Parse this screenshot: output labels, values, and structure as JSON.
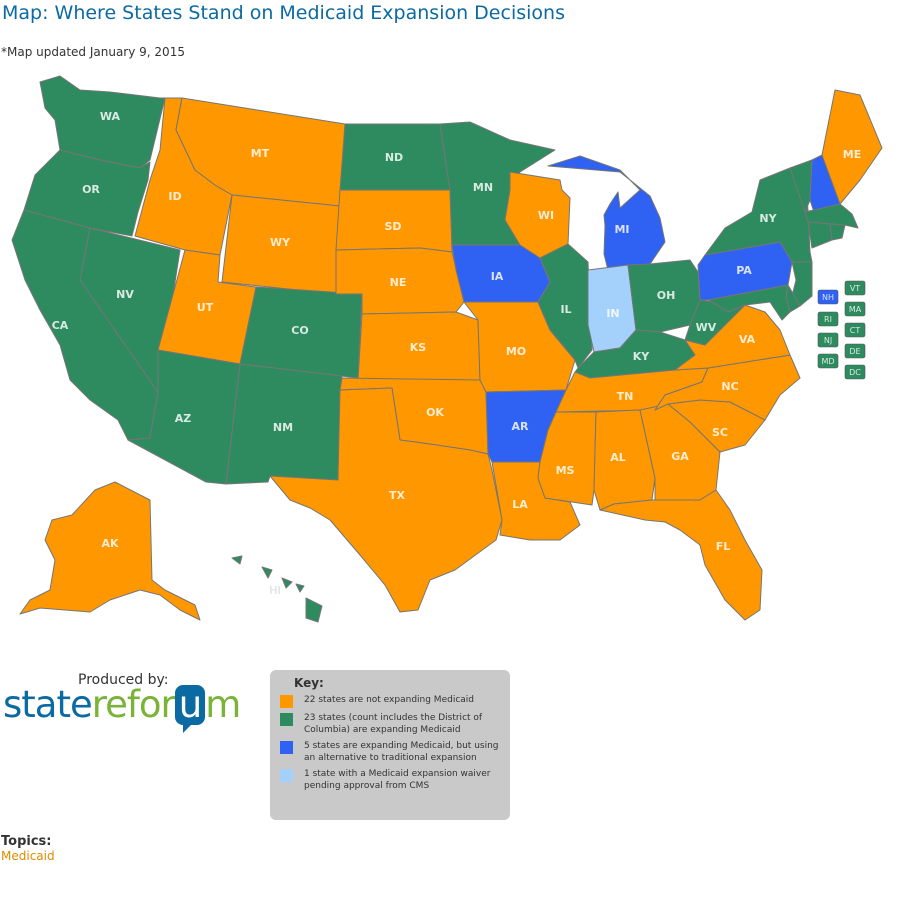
{
  "title": "Map: Where States Stand on Medicaid Expansion Decisions",
  "subtitle": "*Map updated January 9, 2015",
  "colors": {
    "not_expanding": "#ff9800",
    "expanding": "#2e8b60",
    "alternative": "#2f62f2",
    "pending": "#a4d1fb",
    "border": "#757575"
  },
  "states": [
    {
      "abbr": "WA",
      "status": "expanding"
    },
    {
      "abbr": "OR",
      "status": "expanding"
    },
    {
      "abbr": "CA",
      "status": "expanding"
    },
    {
      "abbr": "NV",
      "status": "expanding"
    },
    {
      "abbr": "ID",
      "status": "not_expanding"
    },
    {
      "abbr": "MT",
      "status": "not_expanding"
    },
    {
      "abbr": "WY",
      "status": "not_expanding"
    },
    {
      "abbr": "UT",
      "status": "not_expanding"
    },
    {
      "abbr": "CO",
      "status": "expanding"
    },
    {
      "abbr": "AZ",
      "status": "expanding"
    },
    {
      "abbr": "NM",
      "status": "expanding"
    },
    {
      "abbr": "ND",
      "status": "expanding"
    },
    {
      "abbr": "SD",
      "status": "not_expanding"
    },
    {
      "abbr": "NE",
      "status": "not_expanding"
    },
    {
      "abbr": "KS",
      "status": "not_expanding"
    },
    {
      "abbr": "OK",
      "status": "not_expanding"
    },
    {
      "abbr": "TX",
      "status": "not_expanding"
    },
    {
      "abbr": "MN",
      "status": "expanding"
    },
    {
      "abbr": "IA",
      "status": "alternative"
    },
    {
      "abbr": "MO",
      "status": "not_expanding"
    },
    {
      "abbr": "AR",
      "status": "alternative"
    },
    {
      "abbr": "LA",
      "status": "not_expanding"
    },
    {
      "abbr": "WI",
      "status": "not_expanding"
    },
    {
      "abbr": "IL",
      "status": "expanding"
    },
    {
      "abbr": "MI",
      "status": "alternative"
    },
    {
      "abbr": "IN",
      "status": "pending"
    },
    {
      "abbr": "OH",
      "status": "expanding"
    },
    {
      "abbr": "KY",
      "status": "expanding"
    },
    {
      "abbr": "TN",
      "status": "not_expanding"
    },
    {
      "abbr": "MS",
      "status": "not_expanding"
    },
    {
      "abbr": "AL",
      "status": "not_expanding"
    },
    {
      "abbr": "GA",
      "status": "not_expanding"
    },
    {
      "abbr": "FL",
      "status": "not_expanding"
    },
    {
      "abbr": "SC",
      "status": "not_expanding"
    },
    {
      "abbr": "NC",
      "status": "not_expanding"
    },
    {
      "abbr": "VA",
      "status": "not_expanding"
    },
    {
      "abbr": "WV",
      "status": "expanding"
    },
    {
      "abbr": "PA",
      "status": "alternative"
    },
    {
      "abbr": "NY",
      "status": "expanding"
    },
    {
      "abbr": "ME",
      "status": "not_expanding"
    },
    {
      "abbr": "AK",
      "status": "not_expanding"
    },
    {
      "abbr": "HI",
      "status": "expanding"
    }
  ],
  "small_states": [
    {
      "abbr": "NH",
      "status": "alternative"
    },
    {
      "abbr": "VT",
      "status": "expanding"
    },
    {
      "abbr": "MA",
      "status": "expanding"
    },
    {
      "abbr": "RI",
      "status": "expanding"
    },
    {
      "abbr": "CT",
      "status": "expanding"
    },
    {
      "abbr": "NJ",
      "status": "expanding"
    },
    {
      "abbr": "DE",
      "status": "expanding"
    },
    {
      "abbr": "MD",
      "status": "expanding"
    },
    {
      "abbr": "DC",
      "status": "expanding"
    }
  ],
  "produced_by": "Produced by:",
  "logo": {
    "part1": "state",
    "part2": "refor",
    "part3": "u",
    "part4": "m"
  },
  "key": {
    "title": "Key:",
    "items": [
      {
        "color": "#ff9800",
        "text": "22 states are not expanding Medicaid"
      },
      {
        "color": "#2e8b60",
        "text": "23 states (count includes the District of Columbia) are expanding Medicaid"
      },
      {
        "color": "#2f62f2",
        "text": "5 states are expanding Medicaid, but using an alternative to traditional expansion"
      },
      {
        "color": "#a4d1fb",
        "text": "1 state with a Medicaid expansion waiver pending approval from CMS"
      }
    ]
  },
  "topics": {
    "heading": "Topics:",
    "link": "Medicaid"
  }
}
